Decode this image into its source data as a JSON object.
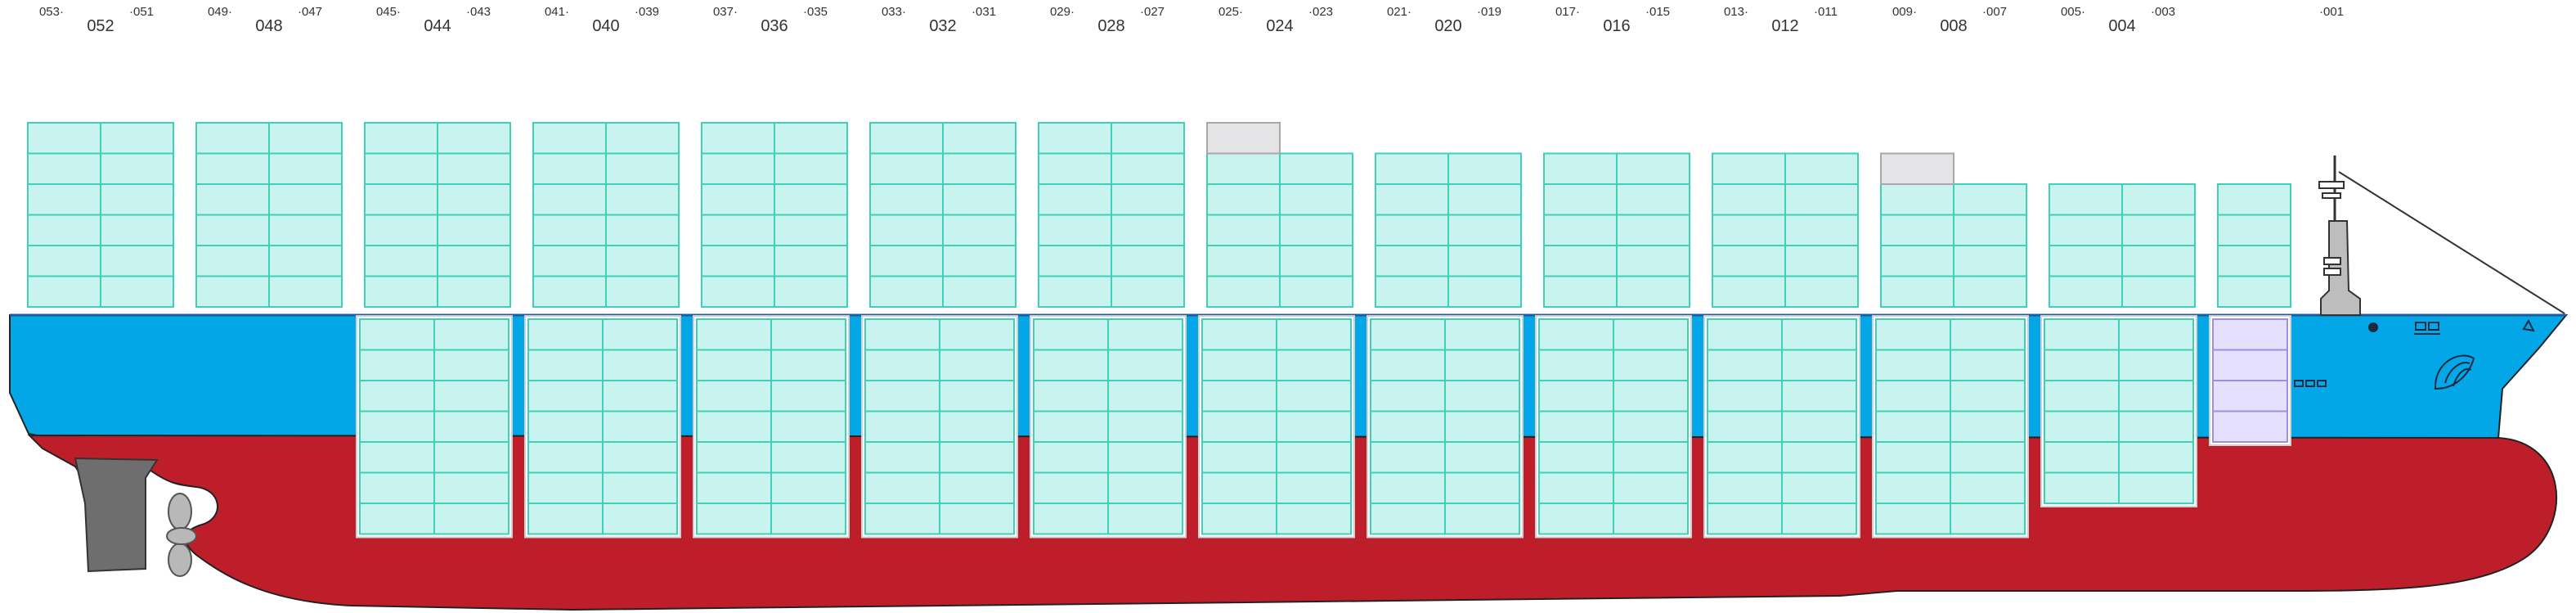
{
  "colors": {
    "hull_blue": "#03a6e6",
    "hull_red": "#be1e2a",
    "deck_stripe": "#1a5c9e",
    "container_fill": "#c8f3ee",
    "container_stroke": "#3fd1b7",
    "empty_fill": "#e4e4e6",
    "special_fill": "#e6e0ff",
    "rudder": "#6e6e6e",
    "propeller": "#b8b8b8",
    "bridge": "#bdbdbd"
  },
  "bay_labels": [
    {
      "main": "052",
      "left": "053",
      "right": "051"
    },
    {
      "main": "048",
      "left": "049",
      "right": "047"
    },
    {
      "main": "044",
      "left": "045",
      "right": "043"
    },
    {
      "main": "040",
      "left": "041",
      "right": "039"
    },
    {
      "main": "036",
      "left": "037",
      "right": "035"
    },
    {
      "main": "032",
      "left": "033",
      "right": "031"
    },
    {
      "main": "028",
      "left": "029",
      "right": "027"
    },
    {
      "main": "024",
      "left": "025",
      "right": "023"
    },
    {
      "main": "020",
      "left": "021",
      "right": "019"
    },
    {
      "main": "016",
      "left": "017",
      "right": "015"
    },
    {
      "main": "012",
      "left": "013",
      "right": "011"
    },
    {
      "main": "008",
      "left": "009",
      "right": "007"
    },
    {
      "main": "004",
      "left": "005",
      "right": "003"
    },
    {
      "main": "",
      "left": "",
      "right": "001"
    }
  ],
  "deck_bays": [
    {
      "tiers": 6,
      "cols": 2,
      "empty_top_left": false
    },
    {
      "tiers": 6,
      "cols": 2,
      "empty_top_left": false
    },
    {
      "tiers": 6,
      "cols": 2,
      "empty_top_left": false
    },
    {
      "tiers": 6,
      "cols": 2,
      "empty_top_left": false
    },
    {
      "tiers": 6,
      "cols": 2,
      "empty_top_left": false
    },
    {
      "tiers": 6,
      "cols": 2,
      "empty_top_left": false
    },
    {
      "tiers": 6,
      "cols": 2,
      "empty_top_left": false
    },
    {
      "tiers": 5,
      "cols": 2,
      "empty_top_left": true
    },
    {
      "tiers": 5,
      "cols": 2,
      "empty_top_left": false
    },
    {
      "tiers": 5,
      "cols": 2,
      "empty_top_left": false
    },
    {
      "tiers": 5,
      "cols": 2,
      "empty_top_left": false
    },
    {
      "tiers": 4,
      "cols": 2,
      "empty_top_left": true
    },
    {
      "tiers": 4,
      "cols": 2,
      "empty_top_left": false
    },
    {
      "tiers": 4,
      "cols": 1,
      "empty_top_left": false
    }
  ],
  "hold_bays": [
    {
      "tiers": 7,
      "cols": 2,
      "special": false
    },
    {
      "tiers": 7,
      "cols": 2,
      "special": false
    },
    {
      "tiers": 7,
      "cols": 2,
      "special": false
    },
    {
      "tiers": 7,
      "cols": 2,
      "special": false
    },
    {
      "tiers": 7,
      "cols": 2,
      "special": false
    },
    {
      "tiers": 7,
      "cols": 2,
      "special": false
    },
    {
      "tiers": 7,
      "cols": 2,
      "special": false
    },
    {
      "tiers": 7,
      "cols": 2,
      "special": false
    },
    {
      "tiers": 7,
      "cols": 2,
      "special": false
    },
    {
      "tiers": 7,
      "cols": 2,
      "special": false
    },
    {
      "tiers": 6,
      "cols": 2,
      "special": false
    },
    {
      "tiers": 4,
      "cols": 1,
      "special": true
    }
  ]
}
